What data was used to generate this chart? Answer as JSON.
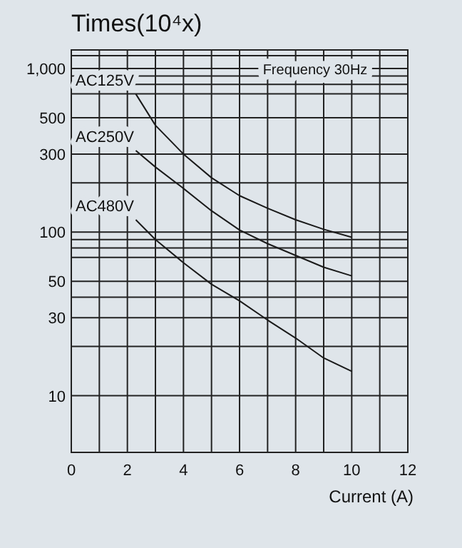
{
  "chart_data": {
    "type": "line",
    "title": "Times(10⁴x)",
    "xlabel": "Current (A)",
    "log": "y",
    "grid": true,
    "marker": "none",
    "line_style": "solid",
    "xlim": [
      0,
      12
    ],
    "xticks": [
      0,
      {
        "value": 1,
        "label": null
      },
      2,
      {
        "value": 3,
        "label": null
      },
      4,
      {
        "value": 5,
        "label": null
      },
      6,
      {
        "value": 7,
        "label": null
      },
      8,
      {
        "value": 9,
        "label": null
      },
      10,
      {
        "value": 11,
        "label": null
      },
      12
    ],
    "ylim": [
      4.5,
      1300
    ],
    "yticks": [
      10,
      {
        "value": 20,
        "label": null
      },
      30,
      {
        "value": 40,
        "label": null
      },
      50,
      {
        "value": 70,
        "label": null
      },
      {
        "value": 80,
        "label": null
      },
      {
        "value": 90,
        "label": null
      },
      {
        "value": 100,
        "label": "100"
      },
      {
        "value": 200,
        "label": null
      },
      300,
      500,
      {
        "value": 700,
        "label": null
      },
      {
        "value": 800,
        "label": null
      },
      {
        "value": 900,
        "label": null
      },
      {
        "value": 1000,
        "label": "1,000"
      },
      {
        "value": 1200,
        "label": null
      }
    ],
    "annotations": [
      "Frequency 30Hz"
    ],
    "series": [
      {
        "name": "AC125V",
        "color": "#1a1a1a",
        "x": [
          2.3,
          3,
          4,
          5,
          6,
          7,
          8,
          9,
          10
        ],
        "values": [
          700,
          450,
          300,
          215,
          167,
          140,
          119,
          104,
          93
        ]
      },
      {
        "name": "AC250V",
        "color": "#1a1a1a",
        "x": [
          2.3,
          3,
          4,
          5,
          6,
          7,
          8,
          9,
          10
        ],
        "values": [
          315,
          250,
          185,
          135,
          103,
          85,
          72,
          61,
          54
        ]
      },
      {
        "name": "AC480V",
        "color": "#1a1a1a",
        "x": [
          2.3,
          3,
          4,
          5,
          6,
          7,
          8,
          9,
          10
        ],
        "values": [
          119,
          90,
          65,
          48,
          38,
          29,
          22.5,
          17,
          14.1
        ]
      }
    ]
  }
}
